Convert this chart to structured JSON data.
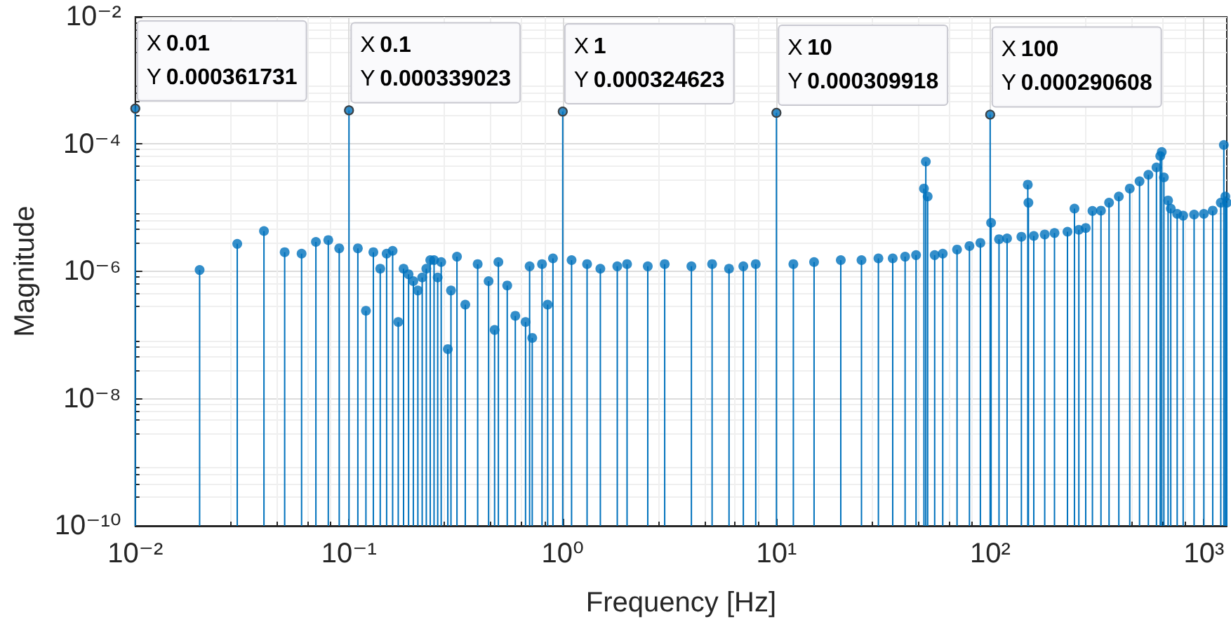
{
  "chart_data": {
    "type": "lollipop",
    "xlabel": "Frequency [Hz]",
    "ylabel": "Magnitude",
    "color": "#0072bd",
    "marker": "circle",
    "log": "xy",
    "grid": true,
    "xlim": [
      0.01,
      1280
    ],
    "ylim": [
      1e-10,
      0.01
    ],
    "xticks": [
      {
        "value": 0.01,
        "label": "10⁻²"
      },
      {
        "value": 0.1,
        "label": "10⁻¹"
      },
      {
        "value": 1,
        "label": "10⁰"
      },
      {
        "value": 10,
        "label": "10¹"
      },
      {
        "value": 100,
        "label": "10²"
      },
      {
        "value": 1000,
        "label": "10³"
      }
    ],
    "yticks": [
      {
        "value": 1e-10,
        "label": "10⁻¹⁰"
      },
      {
        "value": 1e-08,
        "label": "10⁻⁸"
      },
      {
        "value": 1e-06,
        "label": "10⁻⁶"
      },
      {
        "value": 0.0001,
        "label": "10⁻⁴"
      },
      {
        "value": 0.01,
        "label": "10⁻²"
      }
    ],
    "x": [
      0.01,
      0.02,
      0.03,
      0.04,
      0.05,
      0.06,
      0.07,
      0.08,
      0.09,
      0.1,
      0.11,
      0.12,
      0.13,
      0.14,
      0.15,
      0.16,
      0.17,
      0.18,
      0.19,
      0.2,
      0.21,
      0.22,
      0.23,
      0.24,
      0.25,
      0.26,
      0.27,
      0.29,
      0.3,
      0.32,
      0.35,
      0.4,
      0.45,
      0.48,
      0.5,
      0.55,
      0.6,
      0.67,
      0.7,
      0.72,
      0.8,
      0.85,
      0.9,
      1,
      1.1,
      1.3,
      1.5,
      1.8,
      2,
      2.5,
      3,
      4,
      5,
      6,
      7,
      8,
      10,
      12,
      15,
      20,
      25,
      30,
      35,
      40,
      45,
      49,
      50,
      51,
      55,
      60,
      70,
      80,
      90,
      100,
      101,
      110,
      120,
      140,
      150,
      151,
      160,
      180,
      200,
      230,
      248,
      260,
      280,
      301,
      330,
      360,
      400,
      450,
      500,
      550,
      600,
      625,
      635,
      650,
      680,
      700,
      750,
      800,
      900,
      1000,
      1100,
      1200,
      1240,
      1260,
      1280
    ],
    "values": [
      0.000361731,
      1.05e-06,
      2.7e-06,
      4.3e-06,
      2e-06,
      1.9e-06,
      2.9e-06,
      3.1e-06,
      2.3e-06,
      0.000339023,
      2.3e-06,
      2.4e-07,
      2e-06,
      1.1e-06,
      1.9e-06,
      2.1e-06,
      1.6e-07,
      1.1e-06,
      9e-07,
      7e-07,
      5e-07,
      8e-07,
      1.1e-06,
      1.5e-06,
      1.5e-06,
      8e-07,
      1.4e-06,
      6e-08,
      5e-07,
      1.7e-06,
      3e-07,
      1.3e-06,
      7e-07,
      1.2e-07,
      1.4e-06,
      6e-07,
      2e-07,
      1.6e-07,
      1.2e-06,
      9e-08,
      1.3e-06,
      3e-07,
      1.6e-06,
      0.000324623,
      1.5e-06,
      1.3e-06,
      1.1e-06,
      1.2e-06,
      1.3e-06,
      1.2e-06,
      1.3e-06,
      1.2e-06,
      1.3e-06,
      1.1e-06,
      1.2e-06,
      1.3e-06,
      0.000309918,
      1.3e-06,
      1.4e-06,
      1.5e-06,
      1.5e-06,
      1.6e-06,
      1.6e-06,
      1.7e-06,
      1.8e-06,
      2e-05,
      5.3e-05,
      1.5e-05,
      1.8e-06,
      1.9e-06,
      2.2e-06,
      2.5e-06,
      2.8e-06,
      0.000290608,
      5.8e-06,
      3.2e-06,
      3.3e-06,
      3.5e-06,
      2.3e-05,
      1.2e-05,
      3.6e-06,
      3.8e-06,
      4e-06,
      4.2e-06,
      9.7e-06,
      4.5e-06,
      4.8e-06,
      8.9e-06,
      9e-06,
      1.2e-05,
      1.5e-05,
      2e-05,
      2.6e-05,
      3.3e-05,
      4.3e-05,
      6.5e-05,
      7.5e-05,
      3e-05,
      1.3e-05,
      9.7e-06,
      8e-06,
      7.5e-06,
      7.8e-06,
      8e-06,
      9e-06,
      1.2e-05,
      9.7e-05,
      1.5e-05,
      1.2e-05
    ],
    "annotations": [
      {
        "text": "X 0.01\nY 0.000361731",
        "x": 0.01,
        "y": 0.000361731
      },
      {
        "text": "X 0.1\nY 0.000339023",
        "x": 0.1,
        "y": 0.000339023
      },
      {
        "text": "X 1\nY 0.000324623",
        "x": 1,
        "y": 0.000324623
      },
      {
        "text": "X 10\nY 0.000309918",
        "x": 10,
        "y": 0.000309918
      },
      {
        "text": "X 100\nY 0.000290608",
        "x": 100,
        "y": 0.000290608
      }
    ]
  }
}
